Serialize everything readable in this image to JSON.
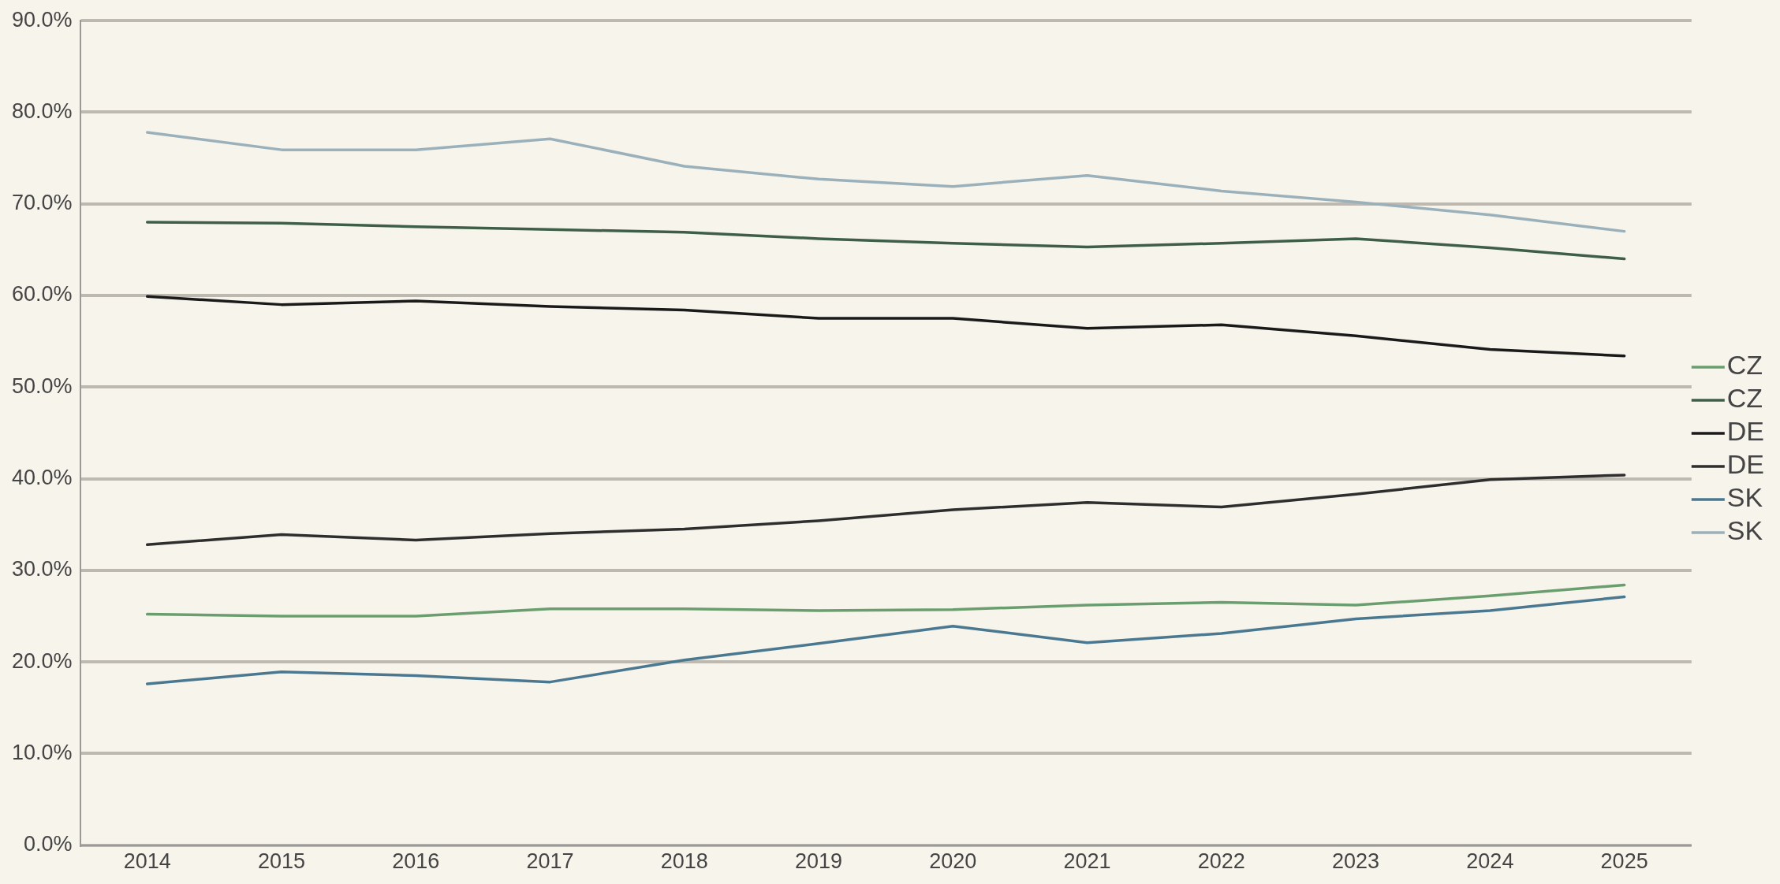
{
  "chart_data": {
    "type": "line",
    "categories": [
      "2014",
      "2015",
      "2016",
      "2017",
      "2018",
      "2019",
      "2020",
      "2021",
      "2022",
      "2023",
      "2024",
      "2025"
    ],
    "series": [
      {
        "name": "CZ",
        "color": "#6a9e6e",
        "values": [
          25.2,
          25.0,
          25.0,
          25.8,
          25.8,
          25.6,
          25.7,
          26.2,
          26.5,
          26.2,
          27.2,
          28.4
        ]
      },
      {
        "name": "CZ",
        "color": "#3e5e48",
        "values": [
          68.0,
          67.9,
          67.5,
          67.2,
          66.9,
          66.2,
          65.7,
          65.3,
          65.7,
          66.2,
          65.2,
          64.0
        ]
      },
      {
        "name": "DE",
        "color": "#1a1a1a",
        "values": [
          59.9,
          59.0,
          59.4,
          58.8,
          58.4,
          57.5,
          57.5,
          56.4,
          56.8,
          55.6,
          54.1,
          53.4
        ]
      },
      {
        "name": "DE",
        "color": "#2e2e2e",
        "values": [
          32.8,
          33.9,
          33.3,
          34.0,
          34.5,
          35.4,
          36.6,
          37.4,
          36.9,
          38.3,
          39.9,
          40.4
        ]
      },
      {
        "name": "SK",
        "color": "#4a7890",
        "values": [
          17.6,
          18.9,
          18.5,
          17.8,
          20.2,
          22.0,
          23.9,
          22.1,
          23.1,
          24.7,
          25.6,
          27.1
        ]
      },
      {
        "name": "SK",
        "color": "#9ab0ba",
        "values": [
          77.8,
          75.9,
          75.9,
          77.1,
          74.1,
          72.7,
          71.9,
          73.1,
          71.4,
          70.2,
          68.8,
          67.0
        ]
      }
    ],
    "ylim": [
      0,
      90
    ],
    "yticks": [
      {
        "value": 0,
        "label": "0.0%"
      },
      {
        "value": 10,
        "label": "10.0%"
      },
      {
        "value": 20,
        "label": "20.0%"
      },
      {
        "value": 30,
        "label": "30.0%"
      },
      {
        "value": 40,
        "label": "40.0%"
      },
      {
        "value": 50,
        "label": "50.0%"
      },
      {
        "value": 60,
        "label": "60.0%"
      },
      {
        "value": 70,
        "label": "70.0%"
      },
      {
        "value": 80,
        "label": "80.0%"
      },
      {
        "value": 90,
        "label": "90.0%"
      }
    ],
    "grid": "y",
    "legend": "right",
    "marker": "none",
    "line_style": "solid"
  }
}
